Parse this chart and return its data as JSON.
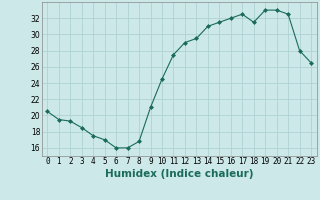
{
  "x": [
    0,
    1,
    2,
    3,
    4,
    5,
    6,
    7,
    8,
    9,
    10,
    11,
    12,
    13,
    14,
    15,
    16,
    17,
    18,
    19,
    20,
    21,
    22,
    23
  ],
  "y": [
    20.5,
    19.5,
    19.3,
    18.5,
    17.5,
    17.0,
    16.0,
    16.0,
    16.8,
    21.0,
    24.5,
    27.5,
    29.0,
    29.5,
    31.0,
    31.5,
    32.0,
    32.5,
    31.5,
    33.0,
    33.0,
    32.5,
    28.0,
    26.5
  ],
  "line_color": "#1a6b5a",
  "marker": "D",
  "marker_size": 2.0,
  "bg_color": "#cce8e8",
  "grid_color": "#aacece",
  "xlabel": "Humidex (Indice chaleur)",
  "ylim": [
    15,
    34
  ],
  "xlim": [
    -0.5,
    23.5
  ],
  "yticks": [
    16,
    18,
    20,
    22,
    24,
    26,
    28,
    30,
    32
  ],
  "xticks": [
    0,
    1,
    2,
    3,
    4,
    5,
    6,
    7,
    8,
    9,
    10,
    11,
    12,
    13,
    14,
    15,
    16,
    17,
    18,
    19,
    20,
    21,
    22,
    23
  ],
  "tick_fontsize": 5.5,
  "label_fontsize": 7.5
}
